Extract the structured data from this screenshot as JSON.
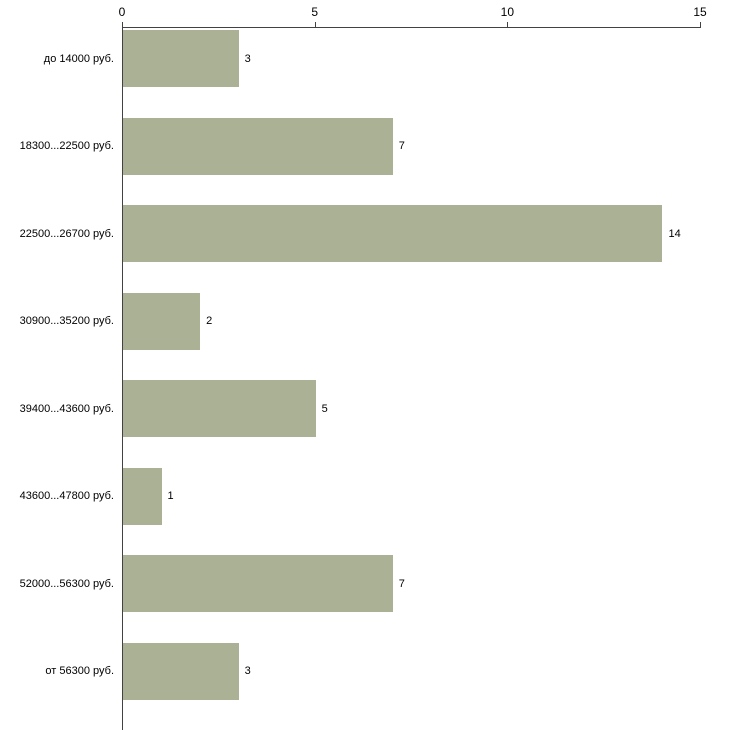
{
  "chart_data": {
    "type": "bar",
    "orientation": "horizontal",
    "title": "",
    "xlabel": "",
    "ylabel": "",
    "categories": [
      "до 14000 руб.",
      "18300...22500 руб.",
      "22500...26700 руб.",
      "30900...35200 руб.",
      "39400...43600 руб.",
      "43600...47800 руб.",
      "52000...56300 руб.",
      "от 56300 руб."
    ],
    "values": [
      3,
      7,
      14,
      2,
      5,
      1,
      7,
      3
    ],
    "value_labels": [
      "3",
      "7",
      "14",
      "2",
      "5",
      "1",
      "7",
      "3"
    ],
    "x_ticks": [
      "0",
      "5",
      "10",
      "15"
    ],
    "xlim": [
      0,
      15
    ],
    "grid": false,
    "legend": false,
    "bar_color": "#abb195",
    "axis_color": "#424242",
    "text_color": "#000000",
    "background_color": "#ffffff"
  }
}
